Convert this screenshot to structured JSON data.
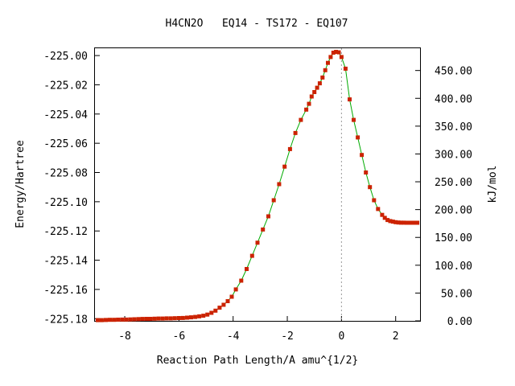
{
  "chart_data": {
    "type": "line",
    "title": "H4CN2O   EQ14 - TS172 - EQ107",
    "xlabel": "Reaction Path Length/A amu^{1/2}",
    "ylabel": "Energy/Hartree",
    "y2label": "kJ/mol",
    "xlim": [
      -9.1,
      2.9
    ],
    "ylim": [
      -225.1815,
      -224.995
    ],
    "xticks": [
      -8,
      -6,
      -4,
      -2,
      0,
      2
    ],
    "yticks": [
      -225.18,
      -225.16,
      -225.14,
      -225.12,
      -225.1,
      -225.08,
      -225.06,
      -225.04,
      -225.02,
      -225.0
    ],
    "y2lim": [
      0,
      490
    ],
    "y2ticks": [
      "0.00",
      "50.00",
      "100.00",
      "150.00",
      "200.00",
      "250.00",
      "300.00",
      "350.00",
      "400.00",
      "450.00"
    ],
    "reference_line_x": 0,
    "line_color": "#00aa00",
    "marker_color": "#cc2200",
    "series": [
      {
        "x": [
          -9.0,
          -8.85,
          -8.7,
          -8.55,
          -8.4,
          -8.25,
          -8.1,
          -7.95,
          -7.8,
          -7.65,
          -7.5,
          -7.35,
          -7.2,
          -7.05,
          -6.9,
          -6.75,
          -6.6,
          -6.45,
          -6.3,
          -6.15,
          -6.0,
          -5.85,
          -5.7,
          -5.55,
          -5.4,
          -5.25,
          -5.1,
          -4.95,
          -4.8,
          -4.65,
          -4.5,
          -4.35,
          -4.2,
          -4.05,
          -3.9,
          -3.7,
          -3.5,
          -3.3,
          -3.1,
          -2.9,
          -2.7,
          -2.5,
          -2.3,
          -2.1,
          -1.9,
          -1.7,
          -1.5,
          -1.3,
          -1.2,
          -1.1,
          -1.0,
          -0.9,
          -0.8,
          -0.7,
          -0.6,
          -0.5,
          -0.4,
          -0.3,
          -0.2,
          -0.1,
          0.0,
          0.15,
          0.3,
          0.45,
          0.6,
          0.75,
          0.9,
          1.05,
          1.2,
          1.35,
          1.5,
          1.6,
          1.7,
          1.8,
          1.9,
          2.0,
          2.1,
          2.2,
          2.3,
          2.4,
          2.5,
          2.6,
          2.7,
          2.8
        ],
        "y": [
          -225.181,
          -225.181,
          -225.1809,
          -225.1808,
          -225.1808,
          -225.1807,
          -225.1806,
          -225.1806,
          -225.1805,
          -225.1804,
          -225.1803,
          -225.1802,
          -225.1801,
          -225.1801,
          -225.18,
          -225.1799,
          -225.1799,
          -225.1798,
          -225.1798,
          -225.1797,
          -225.1796,
          -225.1795,
          -225.1793,
          -225.1791,
          -225.1788,
          -225.1784,
          -225.178,
          -225.1772,
          -225.176,
          -225.1745,
          -225.1725,
          -225.1705,
          -225.168,
          -225.165,
          -225.16,
          -225.154,
          -225.146,
          -225.137,
          -225.128,
          -225.119,
          -225.11,
          -225.099,
          -225.088,
          -225.076,
          -225.064,
          -225.053,
          -225.044,
          -225.037,
          -225.033,
          -225.028,
          -225.025,
          -225.022,
          -225.019,
          -225.015,
          -225.01,
          -225.005,
          -225.001,
          -224.998,
          -224.9975,
          -224.9978,
          -225.001,
          -225.009,
          -225.03,
          -225.044,
          -225.056,
          -225.068,
          -225.08,
          -225.09,
          -225.099,
          -225.105,
          -225.109,
          -225.111,
          -225.1125,
          -225.1132,
          -225.1136,
          -225.114,
          -225.1142,
          -225.1143,
          -225.1143,
          -225.1144,
          -225.1144,
          -225.1144,
          -225.1144,
          -225.1144
        ]
      }
    ]
  }
}
